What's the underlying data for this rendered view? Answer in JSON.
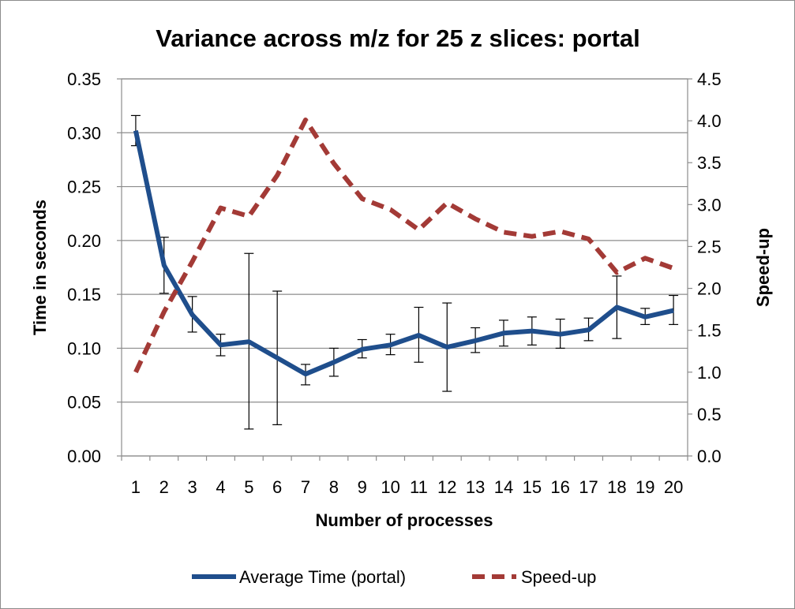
{
  "chart_data": {
    "type": "line",
    "title": "Variance across m/z for 25  z slices: portal",
    "xlabel": "Number of processes",
    "ylabel": "Time in seconds",
    "y2label": "Speed-up",
    "categories": [
      "1",
      "2",
      "3",
      "4",
      "5",
      "6",
      "7",
      "8",
      "9",
      "10",
      "11",
      "12",
      "13",
      "14",
      "15",
      "16",
      "17",
      "18",
      "19",
      "20"
    ],
    "ylim": [
      0,
      0.35
    ],
    "yticks": [
      "0.00",
      "0.05",
      "0.10",
      "0.15",
      "0.20",
      "0.25",
      "0.30",
      "0.35"
    ],
    "y2lim": [
      0,
      4.5
    ],
    "y2ticks": [
      "0.0",
      "0.5",
      "1.0",
      "1.5",
      "2.0",
      "2.5",
      "3.0",
      "3.5",
      "4.0",
      "4.5"
    ],
    "grid": true,
    "legend_position": "bottom",
    "series": [
      {
        "name": "Average Time (portal)",
        "axis": "left",
        "style": "solid",
        "color": "#1f4e8c",
        "values": [
          0.302,
          0.177,
          0.131,
          0.103,
          0.106,
          0.091,
          0.076,
          0.087,
          0.099,
          0.103,
          0.112,
          0.101,
          0.107,
          0.114,
          0.116,
          0.113,
          0.117,
          0.138,
          0.129,
          0.135
        ],
        "error_low": [
          0.288,
          0.151,
          0.115,
          0.093,
          0.025,
          0.029,
          0.066,
          0.074,
          0.091,
          0.094,
          0.087,
          0.06,
          0.096,
          0.102,
          0.103,
          0.1,
          0.107,
          0.109,
          0.122,
          0.122
        ],
        "error_high": [
          0.316,
          0.203,
          0.148,
          0.113,
          0.188,
          0.153,
          0.085,
          0.1,
          0.108,
          0.113,
          0.138,
          0.142,
          0.119,
          0.126,
          0.129,
          0.127,
          0.128,
          0.167,
          0.137,
          0.149
        ]
      },
      {
        "name": "Speed-up",
        "axis": "right",
        "style": "dashed",
        "color": "#a33a36",
        "values": [
          1.0,
          1.72,
          2.32,
          2.96,
          2.86,
          3.35,
          4.01,
          3.49,
          3.07,
          2.94,
          2.7,
          3.02,
          2.83,
          2.67,
          2.62,
          2.68,
          2.59,
          2.19,
          2.36,
          2.24
        ]
      }
    ]
  }
}
